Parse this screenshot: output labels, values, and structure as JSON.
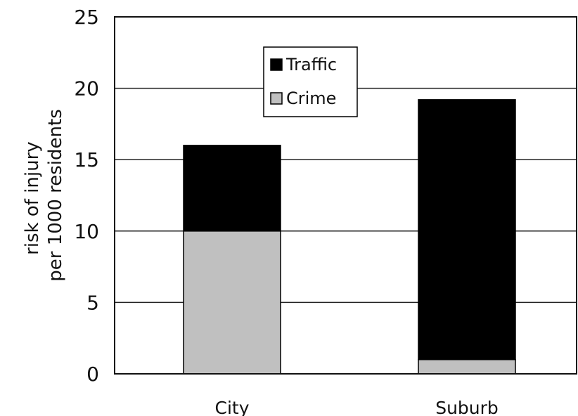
{
  "chart_data": {
    "type": "bar",
    "stacked": true,
    "categories": [
      "City",
      "Suburb"
    ],
    "series": [
      {
        "name": "Crime",
        "values": [
          10,
          1
        ],
        "color": "#c0c0c0"
      },
      {
        "name": "Traffic",
        "values": [
          6,
          18.2
        ],
        "color": "#000000"
      }
    ],
    "ylabel_lines": [
      "risk of injury",
      "per 1000 residents"
    ],
    "xlabel": "",
    "ylim": [
      0,
      25
    ],
    "yticks": [
      0,
      5,
      10,
      15,
      20,
      25
    ],
    "grid": true,
    "legend": {
      "placement": "top-center",
      "entries": [
        "Traffic",
        "Crime"
      ]
    }
  }
}
